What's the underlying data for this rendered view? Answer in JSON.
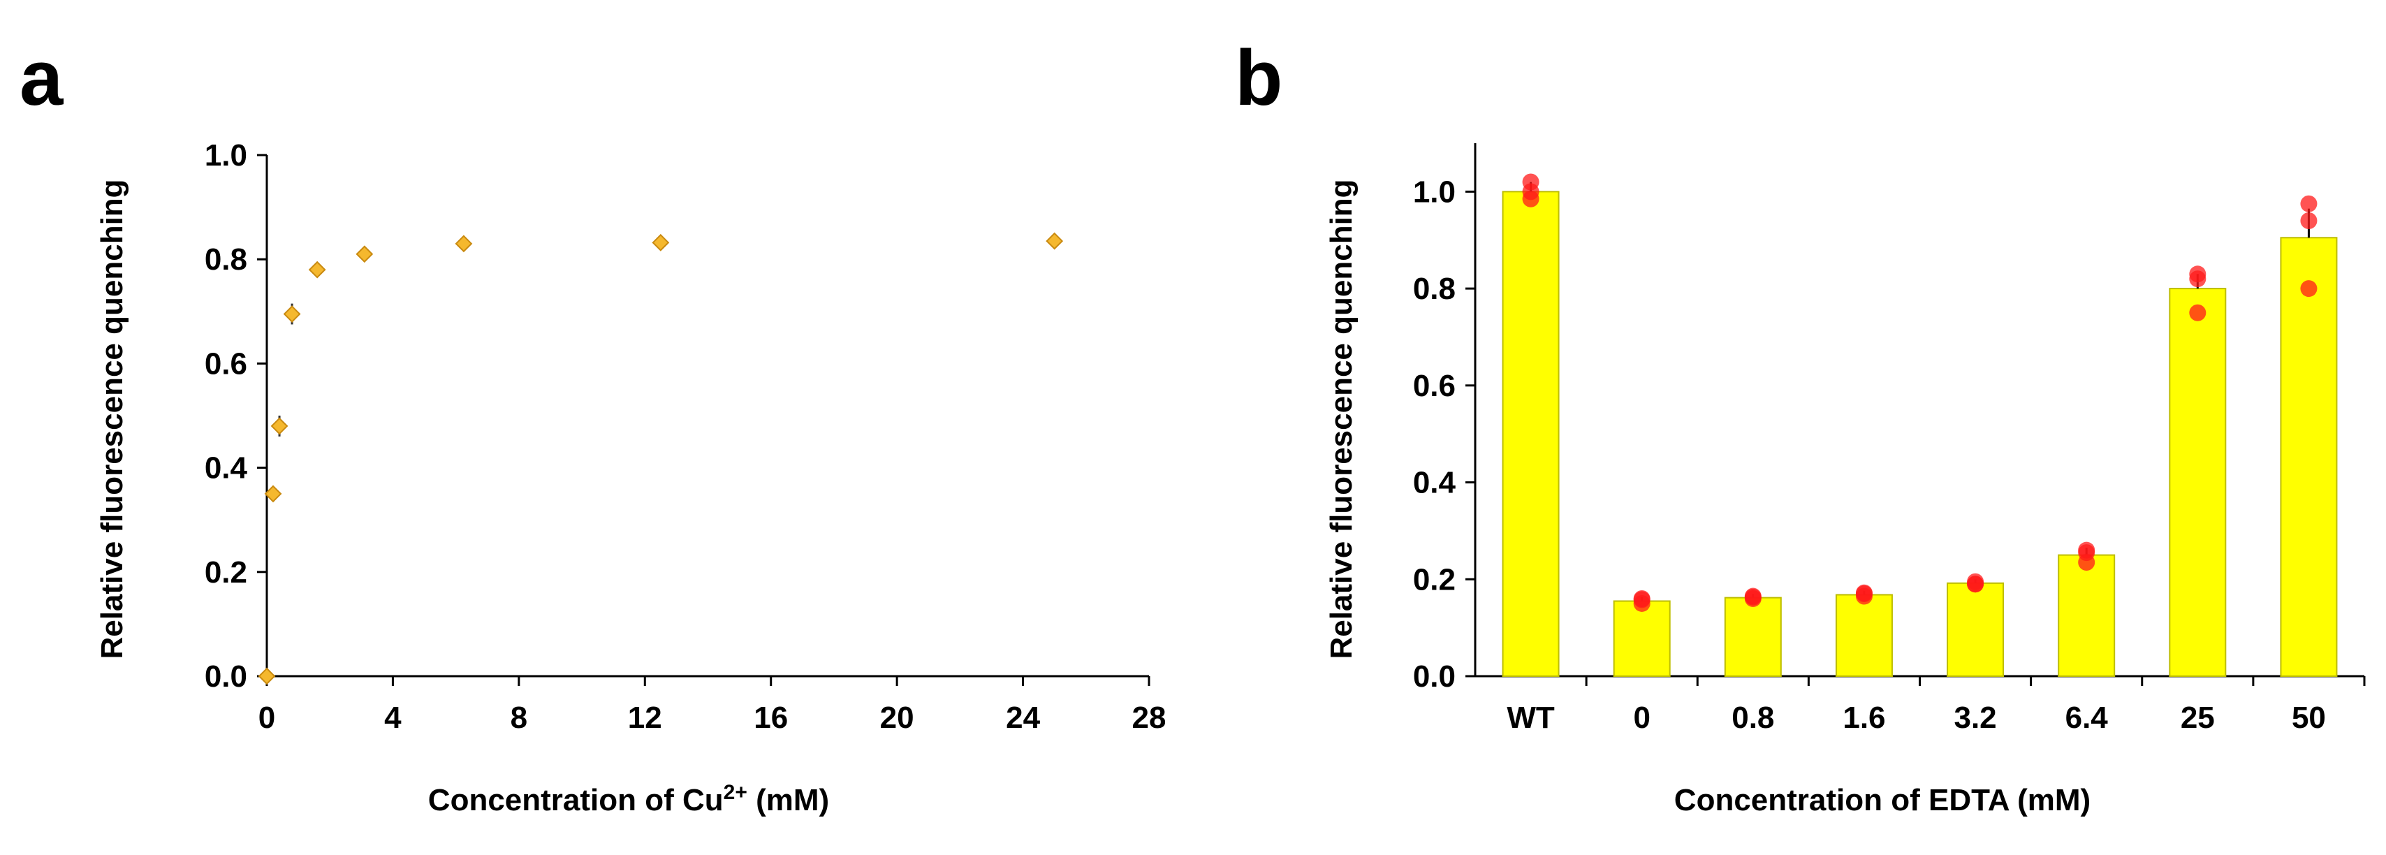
{
  "colors": {
    "diamond_fill": "#F5B82E",
    "diamond_edge": "#C98A10",
    "bar_fill": "#FFFF00",
    "bar_edge": "#BDBD00",
    "dot": "#FF1A1A",
    "axis": "#000000"
  },
  "chart_data": [
    {
      "panel": "a",
      "type": "scatter",
      "title": "",
      "xlabel_prefix": "Concentration of Cu",
      "xlabel_superscript": "2+",
      "xlabel_suffix": " (mM)",
      "ylabel": "Relative fluorescence quenching",
      "xlim": [
        0,
        28
      ],
      "ylim": [
        0,
        1.0
      ],
      "xticks": [
        "0",
        "4",
        "8",
        "12",
        "16",
        "20",
        "24",
        "28"
      ],
      "yticks": [
        "0.0",
        "0.2",
        "0.4",
        "0.6",
        "0.8",
        "1.0"
      ],
      "x": [
        0,
        0.2,
        0.4,
        0.8,
        1.6,
        3.1,
        6.25,
        12.5,
        25
      ],
      "y": [
        0.0,
        0.35,
        0.48,
        0.695,
        0.78,
        0.81,
        0.83,
        0.832,
        0.835
      ],
      "yerr": [
        0.0,
        0.015,
        0.02,
        0.02,
        0.008,
        0.008,
        0.006,
        0.006,
        0.006
      ]
    },
    {
      "panel": "b",
      "type": "bar",
      "title": "",
      "xlabel": "Concentration of EDTA (mM)",
      "ylabel": "Relative fluorescence quenching",
      "ylim": [
        0,
        1.1
      ],
      "yticks": [
        "0.0",
        "0.2",
        "0.4",
        "0.6",
        "0.8",
        "1.0"
      ],
      "categories": [
        "WT",
        "0",
        "0.8",
        "1.6",
        "3.2",
        "6.4",
        "25",
        "50"
      ],
      "values": [
        1.0,
        0.155,
        0.162,
        0.168,
        0.192,
        0.25,
        0.8,
        0.905
      ],
      "errors": [
        0.02,
        0.008,
        0.008,
        0.008,
        0.008,
        0.015,
        0.03,
        0.06
      ],
      "replicates": [
        [
          1.0,
          1.02,
          0.985
        ],
        [
          0.15,
          0.158,
          0.16
        ],
        [
          0.16,
          0.163,
          0.165
        ],
        [
          0.165,
          0.17,
          0.172
        ],
        [
          0.19,
          0.195,
          0.19
        ],
        [
          0.235,
          0.26,
          0.255
        ],
        [
          0.75,
          0.83,
          0.82
        ],
        [
          0.8,
          0.94,
          0.975
        ]
      ]
    }
  ]
}
